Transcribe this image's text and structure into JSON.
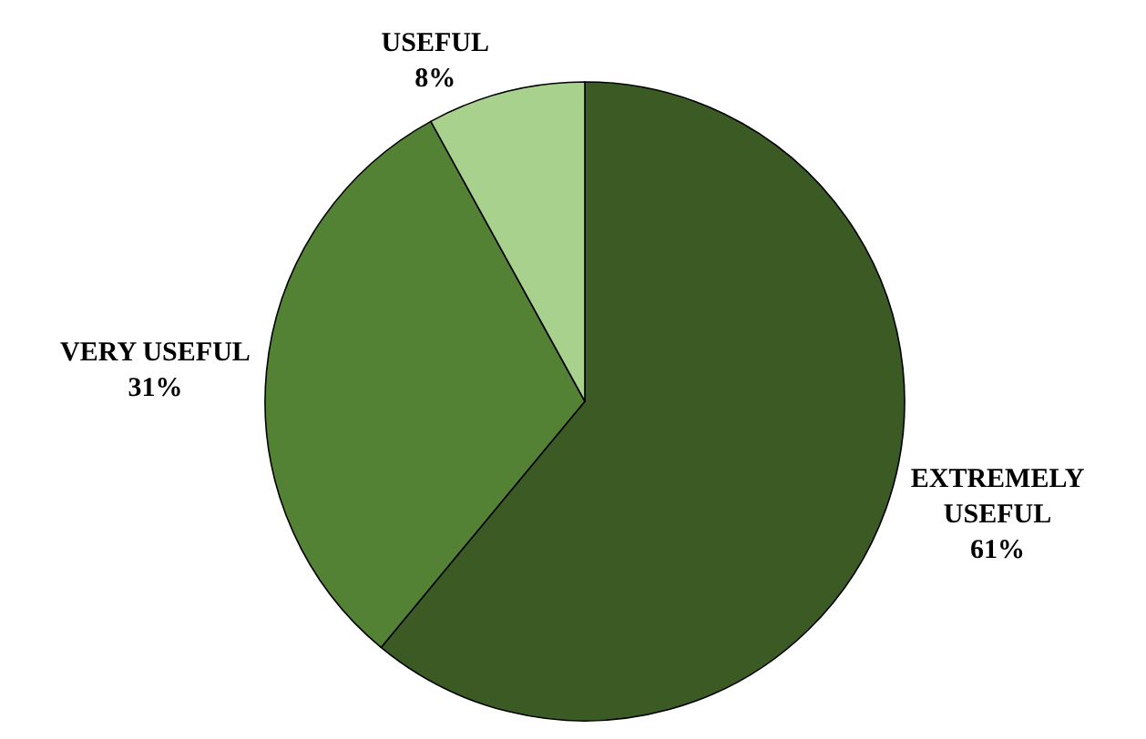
{
  "chart_data": {
    "type": "pie",
    "categories": [
      "EXTREMELY USEFUL",
      "VERY USEFUL",
      "USEFUL"
    ],
    "values": [
      61,
      31,
      8
    ],
    "value_labels": [
      "61%",
      "31%",
      "8%"
    ],
    "colors": [
      "#3b5a24",
      "#548235",
      "#a9d18e"
    ],
    "legend": false
  }
}
